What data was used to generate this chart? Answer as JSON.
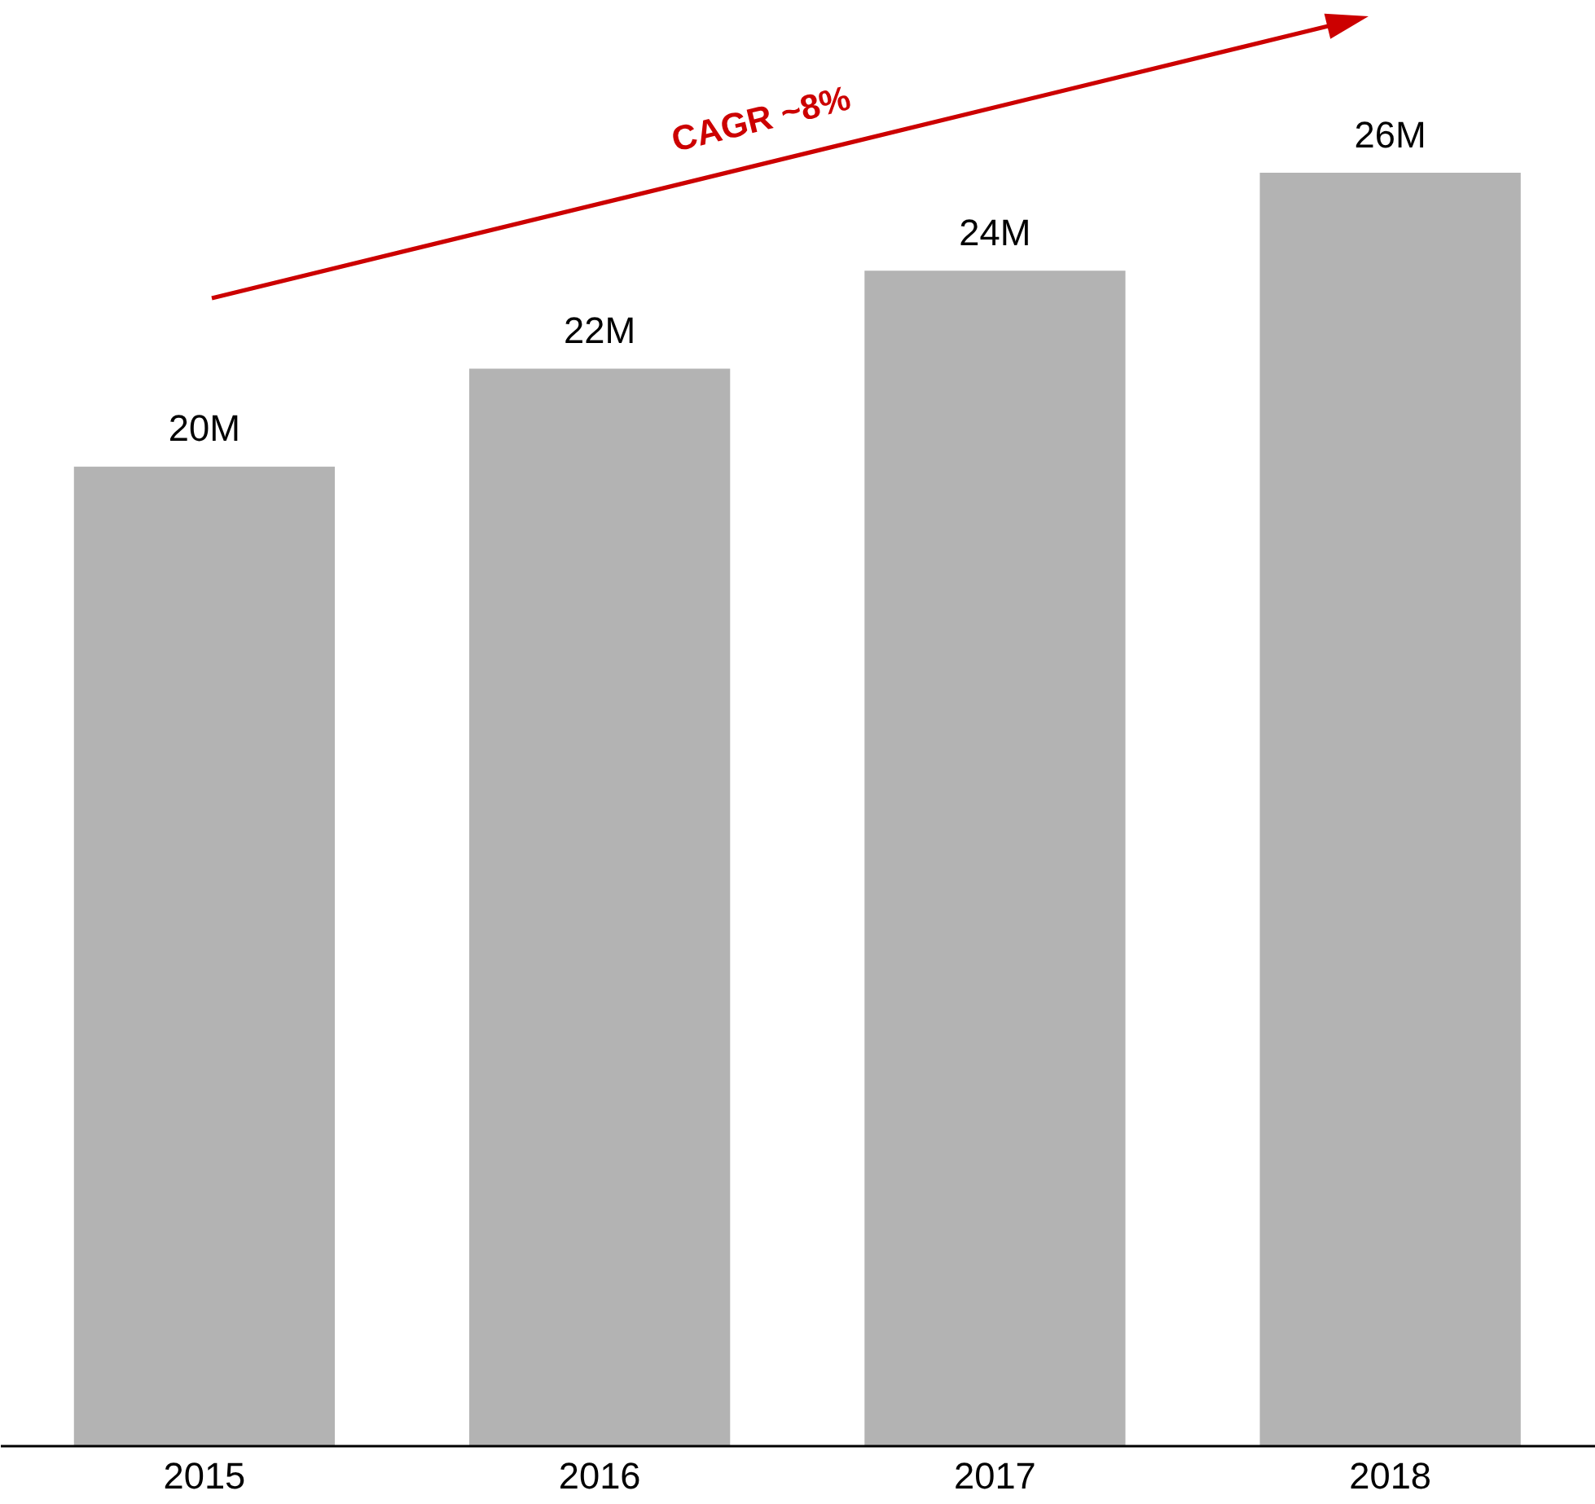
{
  "chart_data": {
    "type": "bar",
    "categories": [
      "2015",
      "2016",
      "2017",
      "2018"
    ],
    "values": [
      20,
      22,
      24,
      26
    ],
    "value_labels": [
      "20M",
      "22M",
      "24M",
      "26M"
    ],
    "color": "#b3b3b3",
    "annotations": [
      "CAGR ~8%"
    ],
    "grid": false
  }
}
